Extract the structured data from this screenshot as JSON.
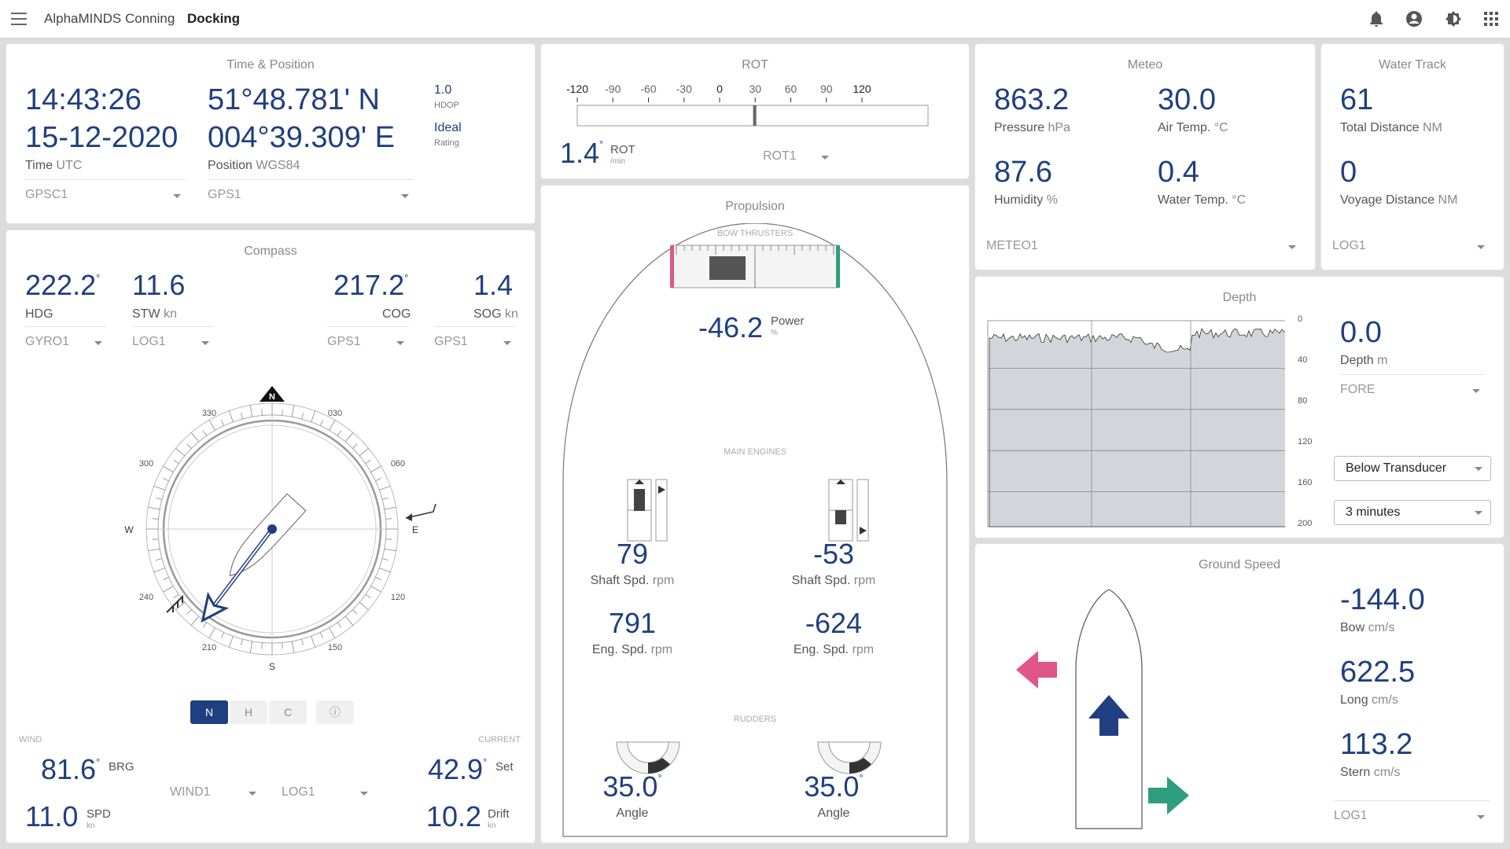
{
  "topbar": {
    "app_title": "AlphaMINDS Conning",
    "page_title": "Docking",
    "icons": [
      "menu-icon",
      "bell-icon",
      "account-icon",
      "brightness-icon",
      "apps-grid-icon"
    ]
  },
  "time_position": {
    "title": "Time & Position",
    "time": "14:43:26",
    "date": "15-12-2020",
    "time_label": "Time",
    "time_unit": "UTC",
    "lat": "51°48.781' N",
    "lon": "004°39.309' E",
    "pos_label": "Position",
    "pos_unit": "WGS84",
    "hdop_value": "1.0",
    "hdop_label": "HDOP",
    "rating_value": "Ideal",
    "rating_label": "Rating",
    "source_time": "GPSC1",
    "source_pos": "GPS1"
  },
  "rot": {
    "title": "ROT",
    "ticks": [
      "-120",
      "-90",
      "-60",
      "-30",
      "0",
      "30",
      "60",
      "90",
      "120"
    ],
    "value": "1.4",
    "unit_top": "ROT",
    "unit_bottom": "/min",
    "source": "ROT1"
  },
  "meteo": {
    "title": "Meteo",
    "pressure": "863.2",
    "pressure_label": "Pressure",
    "pressure_unit": "hPa",
    "air_temp": "30.0",
    "air_label": "Air Temp.",
    "air_unit": "°C",
    "humidity": "87.6",
    "humidity_label": "Humidity",
    "humidity_unit": "%",
    "water_temp": "0.4",
    "water_label": "Water Temp.",
    "water_unit": "°C",
    "source": "METEO1"
  },
  "water_track": {
    "title": "Water Track",
    "total": "61",
    "total_label": "Total Distance",
    "total_unit": "NM",
    "voyage": "0",
    "voyage_label": "Voyage Distance",
    "voyage_unit": "NM",
    "source": "LOG1"
  },
  "compass": {
    "title": "Compass",
    "hdg": "222.2",
    "hdg_label": "HDG",
    "stw": "11.6",
    "stw_label": "STW",
    "stw_unit": "kn",
    "cog": "217.2",
    "cog_label": "COG",
    "sog": "1.4",
    "sog_label": "SOG",
    "sog_unit": "kn",
    "src_hdg": "GYRO1",
    "src_stw": "LOG1",
    "src_cog": "GPS1",
    "src_sog": "GPS1",
    "dial_labels": {
      "n": "N",
      "s": "S",
      "e": "E",
      "w": "W",
      "d330": "330",
      "d030": "030",
      "d060": "060",
      "d300": "300",
      "d240": "240",
      "d120": "120",
      "d210": "210",
      "d150": "150"
    },
    "modes": [
      "N",
      "H",
      "C"
    ],
    "heading_deg": 222.2,
    "cog_deg": 217.2
  },
  "wind_current": {
    "wind_label": "WIND",
    "current_label": "CURRENT",
    "wind_brg": "81.6",
    "wind_brg_label": "BRG",
    "wind_spd": "11.0",
    "wind_spd_label": "SPD",
    "wind_spd_unit": "kn",
    "cur_set": "42.9",
    "cur_set_label": "Set",
    "cur_drift": "10.2",
    "cur_drift_label": "Drift",
    "cur_drift_unit": "kn",
    "src_wind": "WIND1",
    "src_cur": "LOG1"
  },
  "propulsion": {
    "title": "Propulsion",
    "bow_label": "BOW THRUSTERS",
    "bow_power": "-46.2",
    "bow_power_label": "Power",
    "bow_power_unit": "%",
    "main_label": "MAIN ENGINES",
    "port_shaft": "79",
    "stbd_shaft": "-53",
    "shaft_label": "Shaft Spd.",
    "shaft_unit": "rpm",
    "port_eng": "791",
    "stbd_eng": "-624",
    "eng_label": "Eng. Spd.",
    "eng_unit": "rpm",
    "rudders_label": "RUDDERS",
    "port_angle": "35.0",
    "stbd_angle": "35.0",
    "angle_label": "Angle"
  },
  "depth": {
    "title": "Depth",
    "value": "0.0",
    "label": "Depth",
    "unit": "m",
    "source": "FORE",
    "reference": "Below Transducer",
    "window": "3 minutes",
    "axis": [
      "0",
      "40",
      "80",
      "120",
      "160",
      "200"
    ]
  },
  "ground_speed": {
    "title": "Ground Speed",
    "bow": "-144.0",
    "bow_label": "Bow",
    "bow_unit": "cm/s",
    "long": "622.5",
    "long_label": "Long",
    "long_unit": "cm/s",
    "stern": "113.2",
    "stern_label": "Stern",
    "stern_unit": "cm/s",
    "source": "LOG1",
    "colors": {
      "bow_arrow": "#e0568a",
      "long_arrow": "#1f3f80",
      "stern_arrow": "#2e9e7e"
    }
  }
}
